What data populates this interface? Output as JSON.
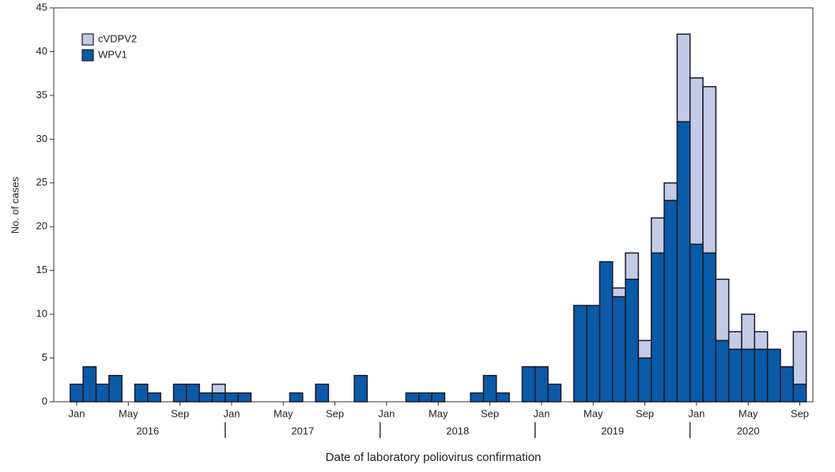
{
  "chart_data": {
    "type": "bar",
    "stacked": true,
    "ylabel": "No. of cases",
    "xlabel": "Date of laboratory poliovirus confirmation",
    "categories": [
      "Jan",
      null,
      null,
      null,
      "May",
      null,
      null,
      null,
      "Sep",
      null,
      null,
      null,
      "Jan",
      null,
      null,
      null,
      "May",
      null,
      null,
      null,
      "Sep",
      null,
      null,
      null,
      "Jan",
      null,
      null,
      null,
      "May",
      null,
      null,
      null,
      "Sep",
      null,
      null,
      null,
      "Jan",
      null,
      null,
      null,
      "May",
      null,
      null,
      null,
      "Sep",
      null,
      null,
      null,
      "Jan",
      null,
      null,
      null,
      "May",
      null,
      null,
      null,
      "Sep"
    ],
    "years": [
      "2016",
      "2017",
      "2018",
      "2019",
      "2020"
    ],
    "series": [
      {
        "name": "WPV1",
        "color": "#0a5aa8",
        "values": [
          2,
          4,
          2,
          3,
          0,
          2,
          1,
          0,
          2,
          2,
          1,
          1,
          1,
          1,
          0,
          0,
          0,
          1,
          0,
          2,
          0,
          0,
          3,
          0,
          0,
          0,
          1,
          1,
          1,
          0,
          0,
          1,
          3,
          1,
          0,
          4,
          4,
          2,
          0,
          11,
          11,
          16,
          12,
          14,
          5,
          17,
          23,
          32,
          18,
          17,
          7,
          6,
          6,
          6,
          6,
          4,
          2
        ]
      },
      {
        "name": "cVDPV2",
        "color": "#c3cbe6",
        "values": [
          0,
          0,
          0,
          0,
          0,
          0,
          0,
          0,
          0,
          0,
          0,
          1,
          0,
          0,
          0,
          0,
          0,
          0,
          0,
          0,
          0,
          0,
          0,
          0,
          0,
          0,
          0,
          0,
          0,
          0,
          0,
          0,
          0,
          0,
          0,
          0,
          0,
          0,
          0,
          0,
          0,
          0,
          1,
          3,
          2,
          4,
          2,
          10,
          19,
          19,
          7,
          2,
          4,
          2,
          0,
          0,
          6
        ]
      }
    ],
    "ylim": [
      0,
      45
    ],
    "yticks": [
      0,
      5,
      10,
      15,
      20,
      25,
      30,
      35,
      40,
      45
    ],
    "legend": "upper left"
  }
}
